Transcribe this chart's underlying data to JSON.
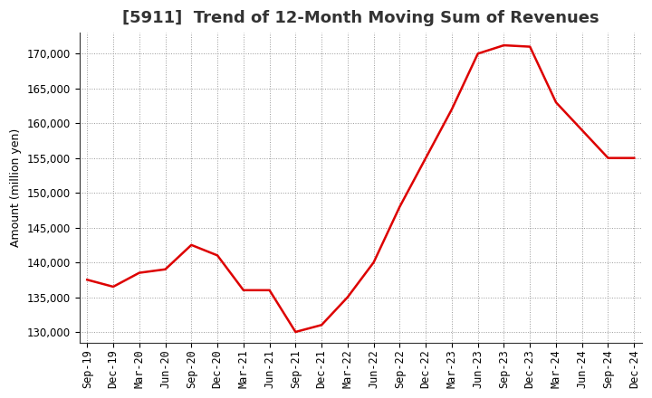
{
  "title": "[5911]  Trend of 12-Month Moving Sum of Revenues",
  "ylabel": "Amount (million yen)",
  "line_color": "#dd0000",
  "background_color": "#ffffff",
  "plot_bg_color": "#ffffff",
  "grid_color": "#999999",
  "x_labels": [
    "Sep-19",
    "Dec-19",
    "Mar-20",
    "Jun-20",
    "Sep-20",
    "Dec-20",
    "Mar-21",
    "Jun-21",
    "Sep-21",
    "Dec-21",
    "Mar-22",
    "Jun-22",
    "Sep-22",
    "Dec-22",
    "Mar-23",
    "Jun-23",
    "Sep-23",
    "Dec-23",
    "Mar-24",
    "Jun-24",
    "Sep-24",
    "Dec-24"
  ],
  "values": [
    137500,
    136500,
    138500,
    139000,
    142500,
    141000,
    136000,
    136000,
    130000,
    131000,
    135000,
    140000,
    148000,
    155000,
    162000,
    170000,
    171200,
    171000,
    163000,
    159000,
    155000,
    155000
  ],
  "ylim": [
    128500,
    173000
  ],
  "yticks": [
    130000,
    135000,
    140000,
    145000,
    150000,
    155000,
    160000,
    165000,
    170000
  ],
  "title_fontsize": 13,
  "ylabel_fontsize": 9,
  "tick_fontsize": 8.5
}
